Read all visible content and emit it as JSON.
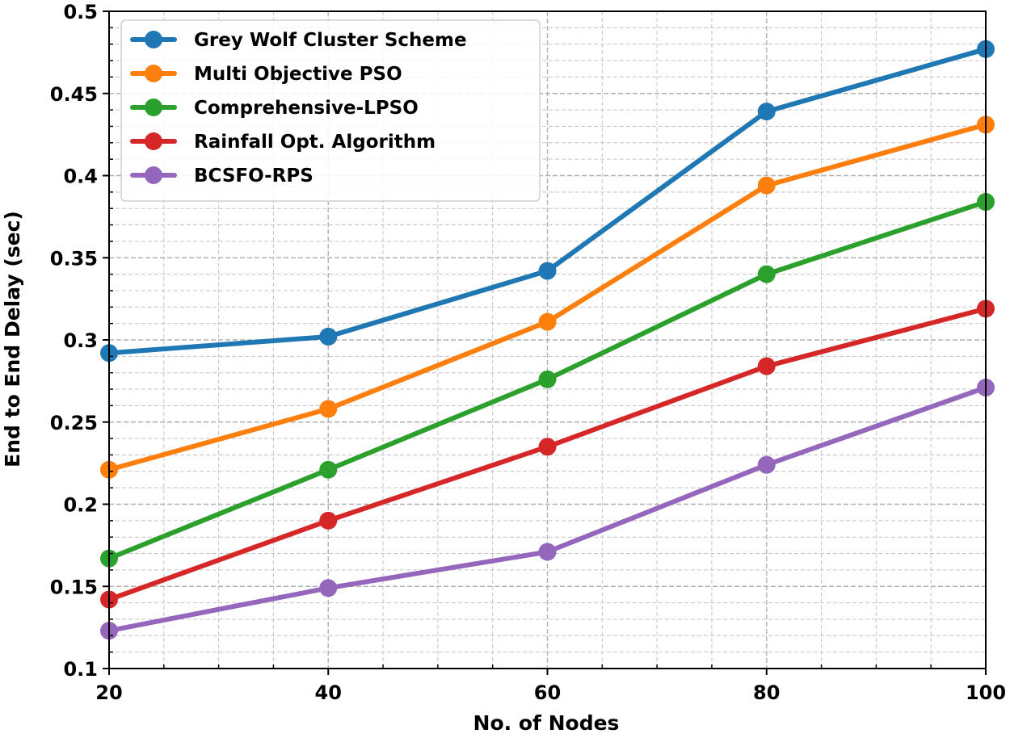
{
  "chart_data": {
    "type": "line",
    "title": "",
    "xlabel": "No. of Nodes",
    "ylabel": "End to End Delay (sec)",
    "x": [
      20,
      40,
      60,
      80,
      100
    ],
    "xlim": [
      20,
      100
    ],
    "ylim": [
      0.1,
      0.5
    ],
    "x_ticks": [
      20,
      40,
      60,
      80,
      100
    ],
    "y_ticks": [
      0.1,
      0.15,
      0.2,
      0.25,
      0.3,
      0.35,
      0.4,
      0.45,
      0.5
    ],
    "y_tick_labels": [
      "0.1",
      "0.15",
      "0.2",
      "0.25",
      "0.3",
      "0.35",
      "0.4",
      "0.45",
      "0.5"
    ],
    "grid": true,
    "legend_position": "top-left",
    "series": [
      {
        "name": "Grey Wolf Cluster Scheme",
        "color": "#1f77b4",
        "values": [
          0.292,
          0.302,
          0.342,
          0.439,
          0.477
        ]
      },
      {
        "name": "Multi Objective PSO",
        "color": "#ff7f0e",
        "values": [
          0.221,
          0.258,
          0.311,
          0.394,
          0.431
        ]
      },
      {
        "name": "Comprehensive-LPSO",
        "color": "#2ca02c",
        "values": [
          0.167,
          0.221,
          0.276,
          0.34,
          0.384
        ]
      },
      {
        "name": "Rainfall Opt. Algorithm",
        "color": "#d62728",
        "values": [
          0.142,
          0.19,
          0.235,
          0.284,
          0.319
        ]
      },
      {
        "name": "BCSFO-RPS",
        "color": "#9467bd",
        "values": [
          0.123,
          0.149,
          0.171,
          0.224,
          0.271
        ]
      }
    ]
  }
}
